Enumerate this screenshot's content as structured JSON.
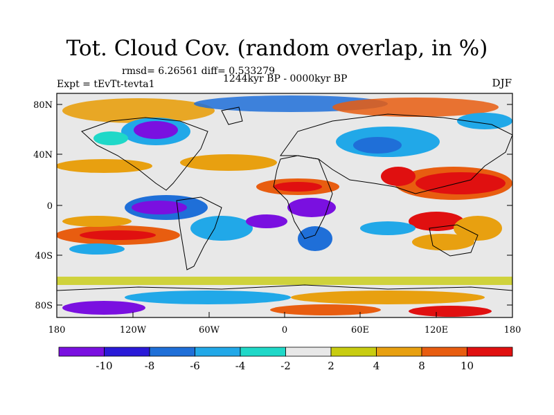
{
  "title": "Tot. Cloud Cov. (random overlap, in %)",
  "stats_text": "rmsd= 6.26561 diff= 0.533279",
  "period": "1244kyr BP - 0000kyr BP",
  "experiment": "Expt = tEvTt-tevta1",
  "season": "DJF",
  "lat_ticks": [
    "80N",
    "40N",
    "0",
    "40S",
    "80S"
  ],
  "lon_ticks": [
    "180",
    "120W",
    "60W",
    "0",
    "60E",
    "120E",
    "180"
  ],
  "colorbar": {
    "labels": [
      "-10",
      "-8",
      "-6",
      "-4",
      "-2",
      "2",
      "4",
      "8",
      "10"
    ],
    "colors": [
      "#7a10e0",
      "#2a1ad8",
      "#1f6fd8",
      "#21a8e8",
      "#1fd8c8",
      "#e8e8e8",
      "#c8cc10",
      "#e8a010",
      "#e85d10",
      "#e01010"
    ]
  }
}
